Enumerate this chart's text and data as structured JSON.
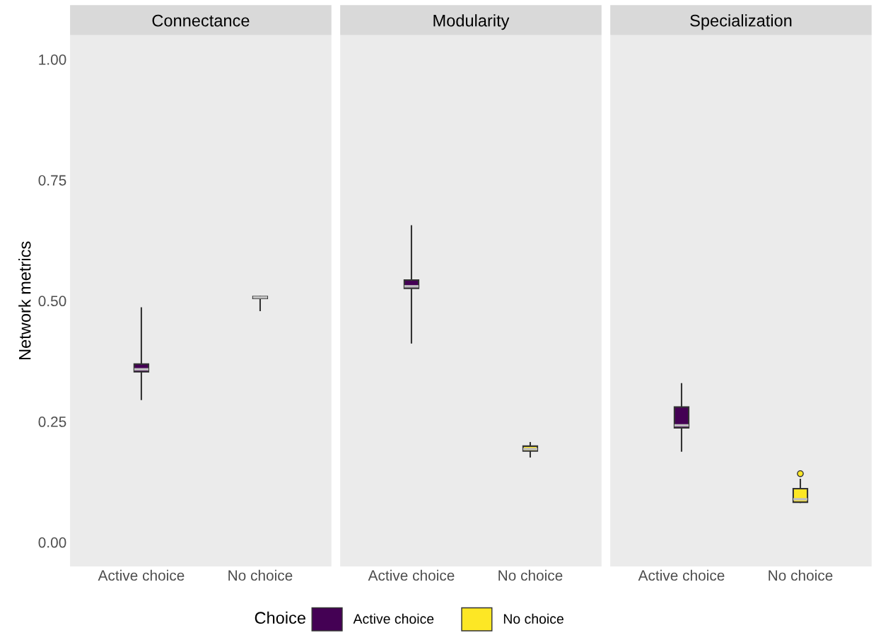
{
  "chart_data": [
    {
      "type": "box",
      "title": "Connectance",
      "ylabel": "Network metrics",
      "categories": [
        "Active choice",
        "No choice"
      ],
      "ylim": [
        -0.05,
        1.05
      ],
      "yticks": [
        {
          "value": 0,
          "label": "0.00"
        },
        {
          "value": 0.25,
          "label": "0.25"
        },
        {
          "value": 0.5,
          "label": "0.50"
        },
        {
          "value": 0.75,
          "label": "0.75"
        },
        {
          "value": 1,
          "label": "1.00"
        }
      ],
      "grid": false,
      "legend": "bottom",
      "legend_title": "Choice",
      "series": [
        {
          "name": "Active choice",
          "color": "#440154",
          "boxes": [
            {
              "low": 0.296,
              "q1": 0.353,
              "median": 0.358,
              "q3": 0.369,
              "high": 0.485
            },
            null
          ]
        },
        {
          "name": "No choice",
          "color": "#fde725",
          "boxes": [
            null,
            {
              "low": 0.48,
              "q1": 0.505,
              "median": 0.507,
              "q3": 0.509,
              "high": 0.509
            }
          ]
        }
      ]
    },
    {
      "type": "box",
      "title": "Modularity",
      "categories": [
        "Active choice",
        "No choice"
      ],
      "ylim": [
        -0.05,
        1.05
      ],
      "tick_labels": "x",
      "grid": false,
      "series": [
        {
          "color": "#440154",
          "boxes": [
            {
              "low": 0.413,
              "q1": 0.526,
              "median": 0.53,
              "q3": 0.543,
              "high": 0.655
            },
            null
          ]
        },
        {
          "color": "#fde725",
          "boxes": [
            null,
            {
              "low": 0.177,
              "q1": 0.189,
              "median": 0.193,
              "q3": 0.199,
              "high": 0.206
            }
          ]
        }
      ]
    },
    {
      "type": "box",
      "title": "Specialization",
      "categories": [
        "Active choice",
        "No choice"
      ],
      "ylim": [
        -0.05,
        1.05
      ],
      "tick_labels": "x",
      "grid": false,
      "series": [
        {
          "color": "#440154",
          "boxes": [
            {
              "low": 0.189,
              "q1": 0.237,
              "median": 0.242,
              "q3": 0.28,
              "high": 0.328
            },
            null
          ]
        },
        {
          "color": "#fde725",
          "boxes": [
            null,
            {
              "low": 0.083,
              "q1": 0.083,
              "median": 0.089,
              "q3": 0.111,
              "high": 0.13,
              "outliers": [
                0.142
              ]
            }
          ]
        }
      ]
    }
  ]
}
